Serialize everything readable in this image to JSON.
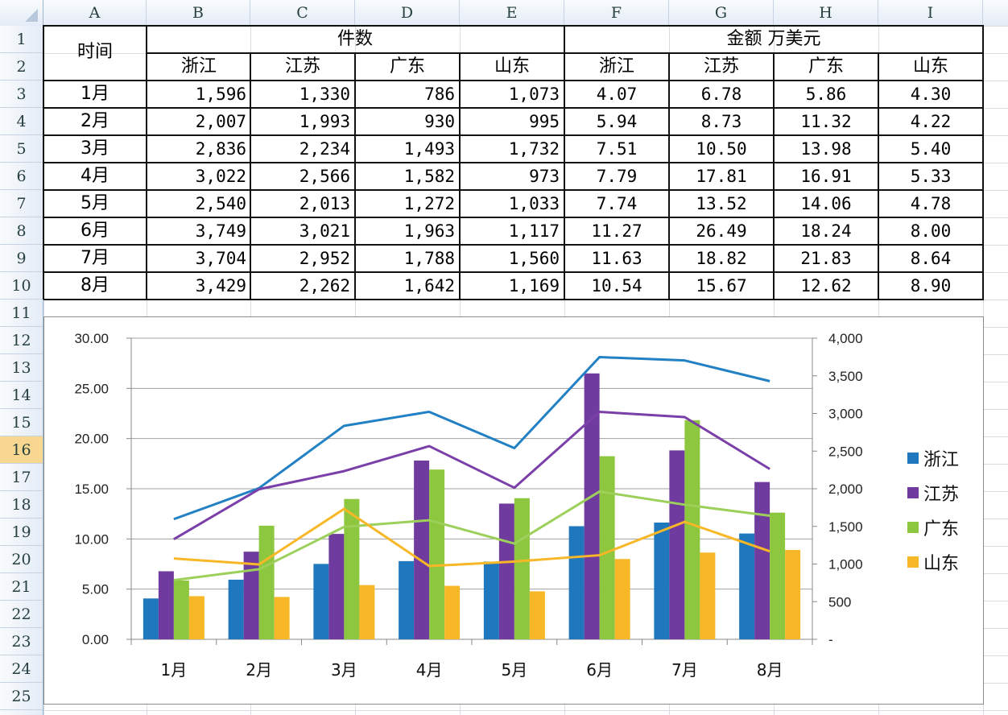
{
  "columns": [
    "A",
    "B",
    "C",
    "D",
    "E",
    "F",
    "G",
    "H",
    "I"
  ],
  "rows": [
    "1",
    "2",
    "3",
    "4",
    "5",
    "6",
    "7",
    "8",
    "9",
    "10",
    "11",
    "12",
    "13",
    "14",
    "15",
    "16",
    "17",
    "18",
    "19",
    "20",
    "21",
    "22",
    "23",
    "24",
    "25"
  ],
  "active_row": "16",
  "table": {
    "time_header": "时间",
    "count_header": "件数",
    "amount_header": "金额  万美元",
    "provinces": [
      "浙江",
      "江苏",
      "广东",
      "山东"
    ],
    "months": [
      "1月",
      "2月",
      "3月",
      "4月",
      "5月",
      "6月",
      "7月",
      "8月"
    ],
    "counts": [
      [
        "1,596",
        "1,330",
        "786",
        "1,073"
      ],
      [
        "2,007",
        "1,993",
        "930",
        "995"
      ],
      [
        "2,836",
        "2,234",
        "1,493",
        "1,732"
      ],
      [
        "3,022",
        "2,566",
        "1,582",
        "973"
      ],
      [
        "2,540",
        "2,013",
        "1,272",
        "1,033"
      ],
      [
        "3,749",
        "3,021",
        "1,963",
        "1,117"
      ],
      [
        "3,704",
        "2,952",
        "1,788",
        "1,560"
      ],
      [
        "3,429",
        "2,262",
        "1,642",
        "1,169"
      ]
    ],
    "amounts": [
      [
        "4.07",
        "6.78",
        "5.86",
        "4.30"
      ],
      [
        "5.94",
        "8.73",
        "11.32",
        "4.22"
      ],
      [
        "7.51",
        "10.50",
        "13.98",
        "5.40"
      ],
      [
        "7.79",
        "17.81",
        "16.91",
        "5.33"
      ],
      [
        "7.74",
        "13.52",
        "14.06",
        "4.78"
      ],
      [
        "11.27",
        "26.49",
        "18.24",
        "8.00"
      ],
      [
        "11.63",
        "18.82",
        "21.83",
        "8.64"
      ],
      [
        "10.54",
        "15.67",
        "12.62",
        "8.90"
      ]
    ]
  },
  "chart_data": {
    "type": "bar",
    "categories": [
      "1月",
      "2月",
      "3月",
      "4月",
      "5月",
      "6月",
      "7月",
      "8月"
    ],
    "series": [
      {
        "name": "浙江",
        "type": "bar",
        "axis": "left",
        "color": "#1f77bd",
        "values": [
          4.07,
          5.94,
          7.51,
          7.79,
          7.74,
          11.27,
          11.63,
          10.54
        ]
      },
      {
        "name": "江苏",
        "type": "bar",
        "axis": "left",
        "color": "#6f3b9e",
        "values": [
          6.78,
          8.73,
          10.5,
          17.81,
          13.52,
          26.49,
          18.82,
          15.67
        ]
      },
      {
        "name": "广东",
        "type": "bar",
        "axis": "left",
        "color": "#8dc63f",
        "values": [
          5.86,
          11.32,
          13.98,
          16.91,
          14.06,
          18.24,
          21.83,
          12.62
        ]
      },
      {
        "name": "山东",
        "type": "bar",
        "axis": "left",
        "color": "#f8b726",
        "values": [
          4.3,
          4.22,
          5.4,
          5.33,
          4.78,
          8.0,
          8.64,
          8.9
        ]
      }
    ],
    "line_series": [
      {
        "name": "浙江",
        "axis": "right",
        "color": "#2280c4",
        "values": [
          1596,
          2007,
          2836,
          3022,
          2540,
          3749,
          3704,
          3429
        ]
      },
      {
        "name": "江苏",
        "axis": "right",
        "color": "#7a3fa8",
        "values": [
          1330,
          1993,
          2234,
          2566,
          2013,
          3021,
          2952,
          2262
        ]
      },
      {
        "name": "广东",
        "axis": "right",
        "color": "#9dd05a",
        "values": [
          786,
          930,
          1493,
          1582,
          1272,
          1963,
          1788,
          1642
        ]
      },
      {
        "name": "山东",
        "axis": "right",
        "color": "#f8b726",
        "values": [
          1073,
          995,
          1732,
          973,
          1033,
          1117,
          1560,
          1169
        ]
      }
    ],
    "left_axis": {
      "min": 0,
      "max": 30,
      "ticks": [
        "0.00",
        "5.00",
        "10.00",
        "15.00",
        "20.00",
        "25.00",
        "30.00"
      ]
    },
    "right_axis": {
      "min": 0,
      "max": 4000,
      "ticks": [
        "-",
        "500",
        "1,000",
        "1,500",
        "2,000",
        "2,500",
        "3,000",
        "3,500",
        "4,000"
      ]
    },
    "legend": [
      "浙江",
      "江苏",
      "广东",
      "山东"
    ],
    "legend_position": "right",
    "grid": true
  }
}
